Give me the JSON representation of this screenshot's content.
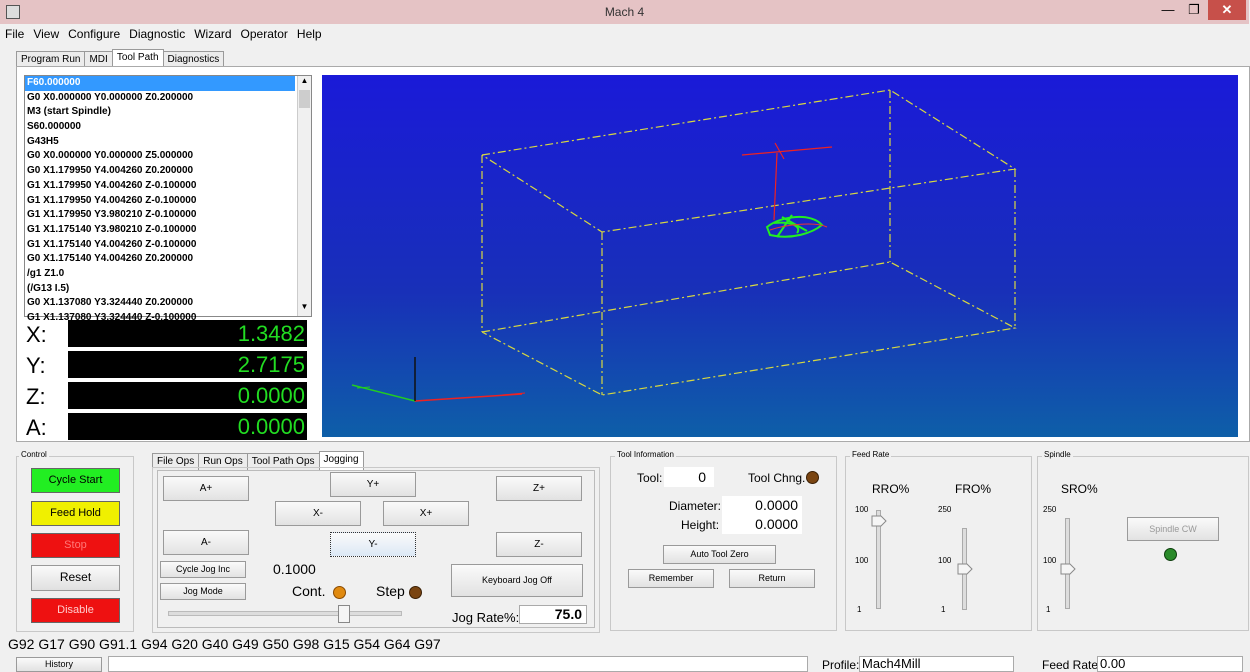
{
  "window": {
    "title": "Mach 4",
    "min": "—",
    "max": "❐",
    "close": "✕"
  },
  "menu": [
    "File",
    "View",
    "Configure",
    "Diagnostic",
    "Wizard",
    "Operator",
    "Help"
  ],
  "top_tabs": [
    "Program Run",
    "MDI",
    "Tool Path",
    "Diagnostics"
  ],
  "top_tabs_active": "Tool Path",
  "gcode": [
    "F60.000000",
    "G0 X0.000000 Y0.000000 Z0.200000",
    "M3 (start Spindle)",
    "S60.000000",
    "G43H5",
    "G0 X0.000000 Y0.000000 Z5.000000",
    "G0 X1.179950 Y4.004260 Z0.200000",
    "G1 X1.179950 Y4.004260 Z-0.100000",
    "G1 X1.179950 Y4.004260 Z-0.100000",
    "G1 X1.179950 Y3.980210 Z-0.100000",
    "G1 X1.175140 Y3.980210 Z-0.100000",
    "G1 X1.175140 Y4.004260 Z-0.100000",
    "G0 X1.175140 Y4.004260 Z0.200000",
    "/g1 Z1.0",
    "(/G13 I.5)",
    "G0 X1.137080 Y3.324440 Z0.200000",
    "G1 X1.137080 Y3.324440 Z-0.100000"
  ],
  "dro": [
    {
      "axis": "X:",
      "value": "1.3482"
    },
    {
      "axis": "Y:",
      "value": "2.7175"
    },
    {
      "axis": "Z:",
      "value": "0.0000"
    },
    {
      "axis": "A:",
      "value": "0.0000"
    }
  ],
  "control": {
    "title": "Control",
    "cycle_start": "Cycle Start",
    "feed_hold": "Feed Hold",
    "stop": "Stop",
    "reset": "Reset",
    "disable": "Disable"
  },
  "ops_tabs": [
    "File Ops",
    "Run Ops",
    "Tool Path Ops",
    "Jogging"
  ],
  "ops_tabs_active": "Jogging",
  "jog": {
    "a_plus": "A+",
    "y_plus": "Y+",
    "z_plus": "Z+",
    "x_minus": "X-",
    "x_plus": "X+",
    "a_minus": "A-",
    "y_minus": "Y-",
    "z_minus": "Z-",
    "cycle_jog_inc": "Cycle Jog Inc",
    "jog_inc_value": "0.1000",
    "jog_mode": "Jog Mode",
    "cont": "Cont.",
    "step": "Step",
    "keyboard_jog": "Keyboard Jog Off",
    "jog_rate_label": "Jog Rate%:",
    "jog_rate_value": "75.0",
    "jog_rate_slider": 0.75
  },
  "tool_info": {
    "title": "Tool Information",
    "tool_label": "Tool:",
    "tool_value": "0",
    "tool_change": "Tool Chng.",
    "diameter_label": "Diameter:",
    "diameter_value": "0.0000",
    "height_label": "Height:",
    "height_value": "0.0000",
    "auto_tool_zero": "Auto Tool Zero",
    "remember": "Remember",
    "return": "Return"
  },
  "feed_rate": {
    "title": "Feed Rate",
    "rro": "RRO%",
    "fro": "FRO%",
    "rro_max": "100",
    "rro_mid": "100",
    "rro_min": "1",
    "fro_max": "250",
    "fro_mid": "100",
    "fro_min": "1"
  },
  "spindle": {
    "title": "Spindle",
    "sro": "SRO%",
    "sro_max": "250",
    "sro_mid": "100",
    "sro_min": "1",
    "spindle_cw": "Spindle CW"
  },
  "gcode_state": "G92 G17 G90 G91.1 G94 G20 G40 G49 G50 G98 G15 G54 G64 G97",
  "status": {
    "history": "History",
    "profile_label": "Profile:",
    "profile_value": "Mach4Mill",
    "feed_rate_label": "Feed Rate:",
    "feed_rate_value": "0.00"
  },
  "colors": {
    "cycle_start": "#22ee22",
    "feed_hold": "#f0f000",
    "stop": "#ee1111",
    "disable": "#ee1111",
    "led_orange": "#e08a10",
    "led_brown": "#7a4512",
    "led_green": "#2a8a2a",
    "dro_text": "#22dd22"
  }
}
